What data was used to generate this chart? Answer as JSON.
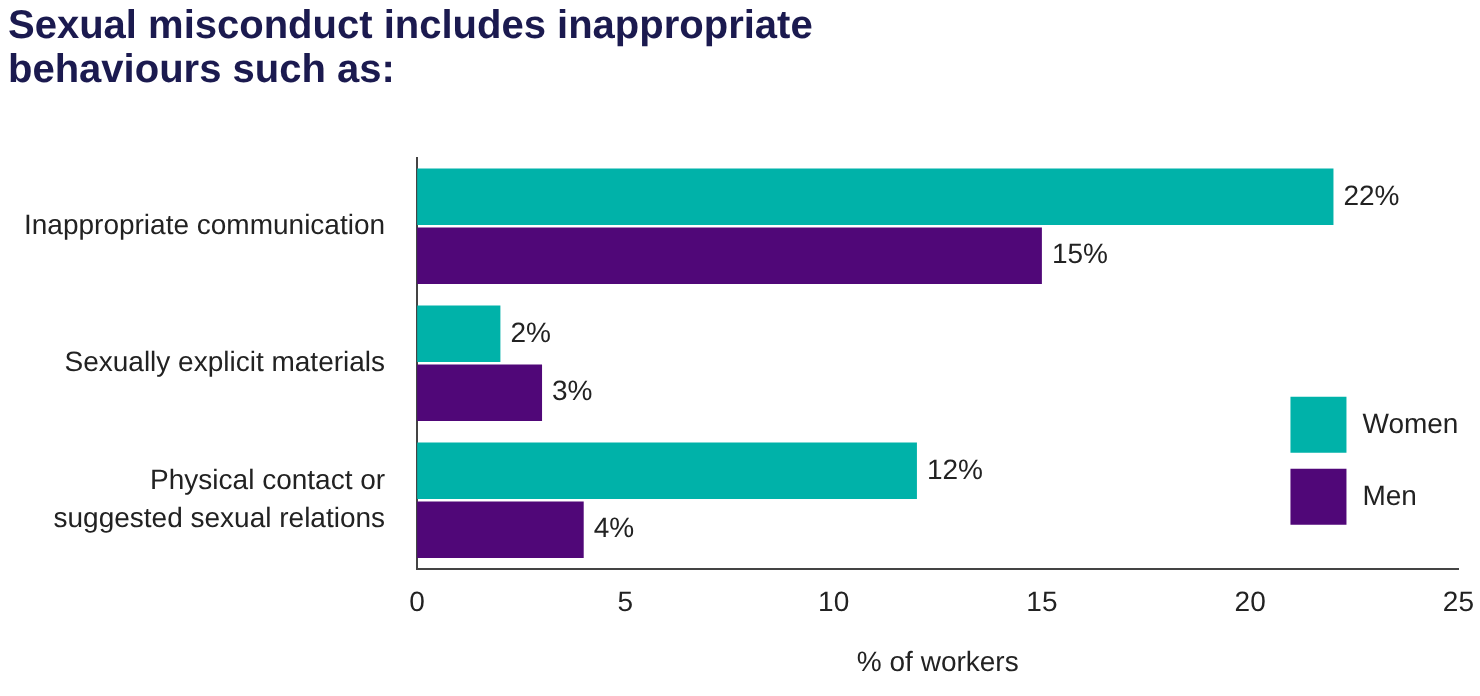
{
  "chart_data": {
    "type": "bar",
    "orientation": "horizontal",
    "title": "Sexual misconduct includes inappropriate behaviours such as:",
    "xlabel": "% of workers",
    "categories": [
      "Inappropriate communication",
      "Sexually explicit materials",
      "Physical contact or suggested sexual relations"
    ],
    "series": [
      {
        "name": "Women",
        "color": "#00b2a9",
        "values": [
          22,
          2,
          12
        ],
        "value_labels": [
          "22%",
          "2%",
          "12%"
        ]
      },
      {
        "name": "Men",
        "color": "#500778",
        "values": [
          15,
          3,
          4
        ],
        "value_labels": [
          "15%",
          "3%",
          "4%"
        ]
      }
    ],
    "xlim": [
      0,
      25
    ],
    "xticks": [
      0,
      5,
      10,
      15,
      20,
      25
    ],
    "grid": false,
    "legend": "bottom right"
  }
}
